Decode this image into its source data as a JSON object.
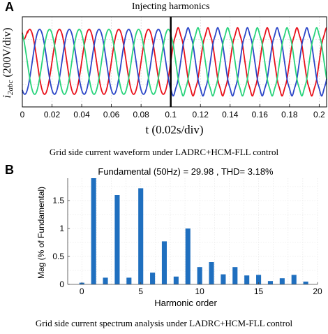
{
  "panel_a": {
    "letter": "A",
    "caption": "Grid side current waveform under LADRC+HCM-FLL control",
    "chart_data": {
      "type": "line",
      "annotation": "Injecting harmonics",
      "annotation_time": 0.1,
      "xlabel": "t (0.02s/div)",
      "ylabel_main": "i",
      "ylabel_sub": "2abc",
      "ylabel_rest": " (200V/div)",
      "xlim": [
        0,
        0.205
      ],
      "x_ticks": [
        "0",
        "0.02",
        "0.04",
        "0.06",
        "0.08",
        "0.1",
        "0.12",
        "0.14",
        "0.16",
        "0.18",
        "0.2"
      ],
      "x_tick_values": [
        0,
        0.02,
        0.04,
        0.06,
        0.08,
        0.1,
        0.12,
        0.14,
        0.16,
        0.18,
        0.2
      ],
      "frequency_hz": 50,
      "series": [
        {
          "phase_deg": 0,
          "color": "#e8101a"
        },
        {
          "phase_deg": -120,
          "color": "#2b46c8"
        },
        {
          "phase_deg": 120,
          "color": "#27d37b"
        }
      ],
      "grid": true
    }
  },
  "panel_b": {
    "letter": "B",
    "caption": "Grid side current spectrum analysis under LADRC+HCM-FLL control",
    "chart_data": {
      "type": "bar",
      "title": "Fundamental (50Hz) = 29.98 , THD= 3.18%",
      "xlabel": "Harmonic order",
      "ylabel": "Mag (% of Fundamental)",
      "xlim": [
        -1.2,
        20
      ],
      "ylim": [
        0,
        1.9
      ],
      "x_ticks": [
        0,
        5,
        10,
        15,
        20
      ],
      "y_ticks": [
        0,
        0.5,
        1,
        1.5
      ],
      "y_tick_labels": [
        "0",
        "0.5",
        "1",
        "1.5"
      ],
      "bar_color": "#1f6fbf",
      "grid": true,
      "orders": [
        0,
        1,
        2,
        3,
        4,
        5,
        6,
        7,
        8,
        9,
        10,
        11,
        12,
        13,
        14,
        15,
        16,
        17,
        18,
        19
      ],
      "values": [
        0.03,
        1.9,
        0.12,
        1.6,
        0.12,
        1.72,
        0.21,
        0.77,
        0.14,
        1.0,
        0.31,
        0.4,
        0.18,
        0.31,
        0.16,
        0.17,
        0.06,
        0.11,
        0.17,
        0.05
      ]
    }
  }
}
